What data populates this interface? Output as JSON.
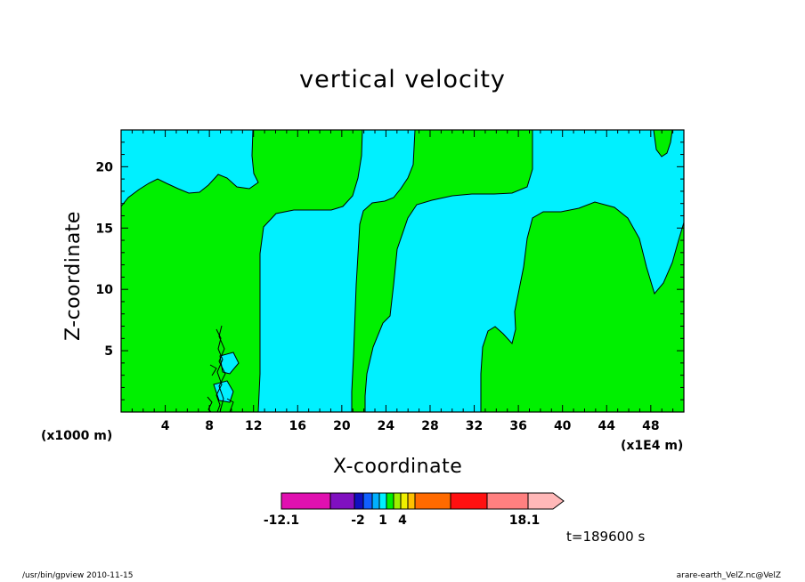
{
  "chart_data": {
    "type": "contour",
    "title": "vertical velocity",
    "xlabel": "X-coordinate",
    "ylabel": "Z-coordinate",
    "y_axis_unit": "(x1000 m)",
    "x_axis_unit": "(x1E4 m)",
    "xlim": [
      0,
      51
    ],
    "ylim": [
      0,
      23
    ],
    "x_ticks": [
      4,
      8,
      12,
      16,
      20,
      24,
      28,
      32,
      36,
      40,
      44,
      48
    ],
    "y_ticks": [
      5,
      10,
      15,
      20
    ],
    "colorbar": {
      "levels": [
        -12.1,
        -10,
        -8,
        -6,
        -4,
        -2,
        -1.5,
        -1,
        -0.5,
        0,
        0.5,
        1,
        1.5,
        2,
        4,
        8,
        12,
        15,
        18.1
      ],
      "labels": [
        "-12.1",
        "-2",
        "1",
        "4",
        "18.1"
      ],
      "label_values": [
        -12.1,
        -2,
        1,
        4,
        18.1
      ],
      "colors": [
        "#e010b0",
        "#8010c0",
        "#1010c0",
        "#1060ff",
        "#00b0ff",
        "#00f0ff",
        "#00f000",
        "#a0f000",
        "#f0f000",
        "#ffc000",
        "#ff6a00",
        "#ff1010",
        "#ff8080",
        "#ffb8b8"
      ]
    },
    "regions": [
      {
        "sign": "positive (upward)",
        "color": "#00f000",
        "approx_x_range": [
          0,
          12
        ],
        "approx_z_range": [
          0,
          18.5
        ]
      },
      {
        "sign": "negative (downward)",
        "color": "#00f0ff",
        "approx_x_range": [
          12.5,
          21
        ],
        "approx_z_range": [
          0,
          16.5
        ]
      },
      {
        "sign": "positive (upward)",
        "color": "#00f000",
        "approx_x_range": [
          21,
          26
        ],
        "approx_z_range": [
          0,
          23
        ]
      },
      {
        "sign": "negative (downward)",
        "color": "#00f0ff",
        "approx_x_range": [
          26,
          33
        ],
        "approx_z_range": [
          0,
          17.5
        ]
      },
      {
        "sign": "positive (upward)",
        "color": "#00f000",
        "approx_x_range": [
          33,
          51
        ],
        "approx_z_range": [
          0,
          17
        ]
      }
    ]
  },
  "time_label": "t=189600 s",
  "footer": {
    "left": "/usr/bin/gpview   2010-11-15",
    "right": "arare-earth_VelZ.nc@VelZ"
  },
  "colors": {
    "positive": "#00f000",
    "negative": "#00f0ff",
    "background": "#ffffff"
  }
}
